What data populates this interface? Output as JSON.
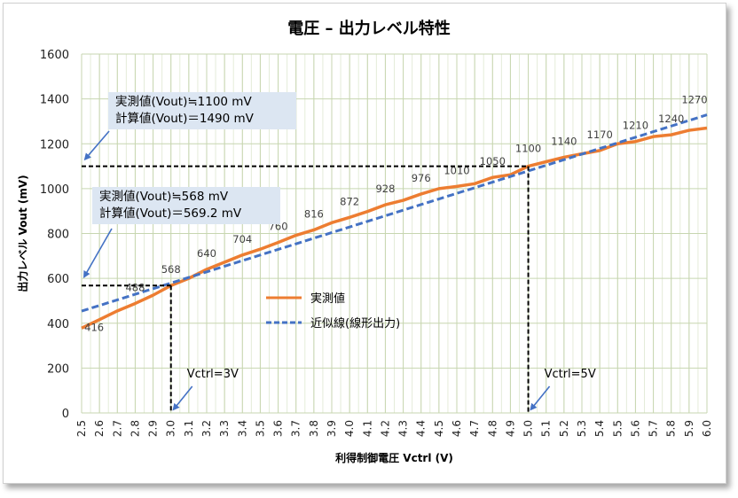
{
  "chart_data": {
    "type": "line",
    "title": "電圧 – 出力レベル特性",
    "xlabel": "利得制御電圧 Vctrl (V)",
    "ylabel": "出力レベル Vout (mV)",
    "xlim": [
      2.5,
      6.0
    ],
    "ylim": [
      0,
      1600
    ],
    "yticks": [
      0,
      200,
      400,
      600,
      800,
      1000,
      1200,
      1400,
      1600
    ],
    "x": [
      2.5,
      2.6,
      2.7,
      2.8,
      2.9,
      3.0,
      3.1,
      3.2,
      3.3,
      3.4,
      3.5,
      3.6,
      3.7,
      3.8,
      3.9,
      4.0,
      4.1,
      4.2,
      4.3,
      4.4,
      4.5,
      4.6,
      4.7,
      4.8,
      4.9,
      5.0,
      5.1,
      5.2,
      5.3,
      5.4,
      5.5,
      5.6,
      5.7,
      5.8,
      5.9,
      6.0
    ],
    "x_tick_labels": [
      "2.5",
      "2.6",
      "2.7",
      "2.8",
      "2.9",
      "3.0",
      "3.1",
      "3.2",
      "3.3",
      "3.4",
      "3.5",
      "3.6",
      "3.7",
      "3.8",
      "3.9",
      "4.0",
      "4.1",
      "4.2",
      "4.3",
      "4.4",
      "4.5",
      "4.6",
      "4.7",
      "4.8",
      "4.9",
      "5.0",
      "5.1",
      "5.2",
      "5.3",
      "5.4",
      "5.5",
      "5.6",
      "5.7",
      "5.8",
      "5.9",
      "6.0"
    ],
    "grid": true,
    "legend_position": "center",
    "series": [
      {
        "name": "実測値",
        "color": "#ed7d31",
        "style": "solid",
        "values": [
          378,
          416,
          455,
          488,
          525,
          568,
          600,
          640,
          672,
          704,
          730,
          760,
          792,
          816,
          848,
          872,
          898,
          928,
          948,
          976,
          1000,
          1010,
          1022,
          1050,
          1062,
          1100,
          1120,
          1140,
          1155,
          1170,
          1200,
          1210,
          1232,
          1240,
          1260,
          1270
        ]
      },
      {
        "name": "近似線(線形出力)",
        "color": "#4472c4",
        "style": "dashed",
        "values": [
          454,
          479,
          504,
          529,
          554,
          579,
          604,
          629,
          654,
          679,
          704,
          729,
          754,
          779,
          804,
          829,
          854,
          879,
          904,
          929,
          954,
          979,
          1004,
          1029,
          1054,
          1079,
          1104,
          1129,
          1154,
          1179,
          1204,
          1229,
          1254,
          1279,
          1304,
          1329
        ]
      }
    ],
    "data_labels": [
      {
        "x": 2.6,
        "y": 416,
        "text": "416"
      },
      {
        "x": 2.8,
        "y": 488,
        "text": "488"
      },
      {
        "x": 3.0,
        "y": 568,
        "text": "568"
      },
      {
        "x": 3.2,
        "y": 640,
        "text": "640"
      },
      {
        "x": 3.4,
        "y": 704,
        "text": "704"
      },
      {
        "x": 3.6,
        "y": 760,
        "text": "760"
      },
      {
        "x": 3.8,
        "y": 816,
        "text": "816"
      },
      {
        "x": 4.0,
        "y": 872,
        "text": "872"
      },
      {
        "x": 4.2,
        "y": 928,
        "text": "928"
      },
      {
        "x": 4.4,
        "y": 976,
        "text": "976"
      },
      {
        "x": 4.6,
        "y": 1010,
        "text": "1010"
      },
      {
        "x": 4.8,
        "y": 1050,
        "text": "1050"
      },
      {
        "x": 5.0,
        "y": 1100,
        "text": "1100"
      },
      {
        "x": 5.2,
        "y": 1140,
        "text": "1140"
      },
      {
        "x": 5.4,
        "y": 1170,
        "text": "1170"
      },
      {
        "x": 5.6,
        "y": 1210,
        "text": "1210"
      },
      {
        "x": 5.8,
        "y": 1240,
        "text": "1240"
      },
      {
        "x": 6.0,
        "y": 1270,
        "text": "1270"
      }
    ],
    "reference_lines": [
      {
        "x": 3.0,
        "y": 568,
        "label": "Vctrl=3V"
      },
      {
        "x": 5.0,
        "y": 1100,
        "label": "Vctrl=5V"
      }
    ],
    "callouts": [
      {
        "line1": "実測値(Vout)≒1100 mV",
        "line2": "計算値(Vout)＝1490 mV"
      },
      {
        "line1": "実測値(Vout)≒568 mV",
        "line2": "計算値(Vout)＝569.2 mV"
      }
    ]
  }
}
